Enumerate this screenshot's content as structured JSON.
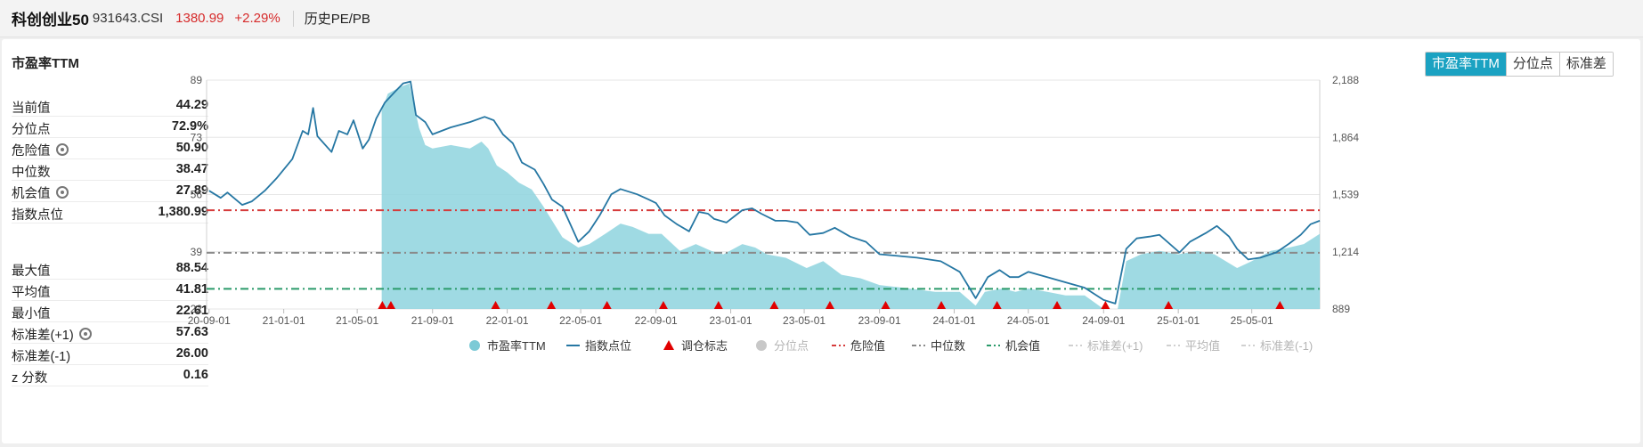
{
  "header": {
    "index_name": "科创创业50",
    "index_code": "931643.CSI",
    "price": "1380.99",
    "change": "+2.29%",
    "history_link": "历史PE/PB"
  },
  "panel": {
    "title": "市盈率TTM",
    "buttons": [
      "市盈率TTM",
      "分位点",
      "标准差"
    ],
    "active_button": 0
  },
  "stats_top": [
    {
      "label": "当前值",
      "value": "44.29",
      "gear": false
    },
    {
      "label": "分位点",
      "value": "72.9%",
      "gear": false
    },
    {
      "label": "危险值",
      "value": "50.90",
      "gear": true
    },
    {
      "label": "中位数",
      "value": "38.47",
      "gear": false
    },
    {
      "label": "机会值",
      "value": "27.89",
      "gear": true
    },
    {
      "label": "指数点位",
      "value": "1,380.99",
      "gear": false
    }
  ],
  "stats_bottom": [
    {
      "label": "最大值",
      "value": "88.54",
      "gear": false
    },
    {
      "label": "平均值",
      "value": "41.81",
      "gear": false
    },
    {
      "label": "最小值",
      "value": "22.61",
      "gear": false
    },
    {
      "label": "标准差(+1)",
      "value": "57.63",
      "gear": true
    },
    {
      "label": "标准差(-1)",
      "value": "26.00",
      "gear": false
    },
    {
      "label": "z 分数",
      "value": "0.16",
      "gear": false
    }
  ],
  "chart_data": {
    "type": "area",
    "x_ticks": [
      "20-09-01",
      "21-01-01",
      "21-05-01",
      "21-09-01",
      "22-01-01",
      "22-05-01",
      "22-09-01",
      "23-01-01",
      "23-05-01",
      "23-09-01",
      "24-01-01",
      "24-05-01",
      "24-09-01",
      "25-01-01",
      "25-05-01"
    ],
    "ylim_left": [
      22,
      89
    ],
    "yticks_left": [
      "89",
      "73",
      "56",
      "39",
      "22"
    ],
    "ylim_right": [
      889,
      2188
    ],
    "yticks_right": [
      "2,188",
      "1,864",
      "1,539",
      "1,214",
      "889"
    ],
    "time_range": [
      "2020-08-28",
      "2025-08-20"
    ],
    "series": [
      {
        "name": "市盈率TTM",
        "kind": "area",
        "axis": "left",
        "color": "#8ed3de",
        "points": [
          [
            "2021-06-10",
            80
          ],
          [
            "2021-06-20",
            85
          ],
          [
            "2021-07-10",
            87
          ],
          [
            "2021-07-25",
            88
          ],
          [
            "2021-08-10",
            75
          ],
          [
            "2021-08-20",
            70
          ],
          [
            "2021-09-01",
            69
          ],
          [
            "2021-10-01",
            70
          ],
          [
            "2021-11-01",
            69
          ],
          [
            "2021-11-20",
            71
          ],
          [
            "2021-12-01",
            69
          ],
          [
            "2021-12-15",
            64
          ],
          [
            "2022-01-01",
            62
          ],
          [
            "2022-01-20",
            59
          ],
          [
            "2022-02-10",
            57
          ],
          [
            "2022-03-01",
            52
          ],
          [
            "2022-04-01",
            43
          ],
          [
            "2022-04-27",
            40
          ],
          [
            "2022-05-15",
            41
          ],
          [
            "2022-06-10",
            44
          ],
          [
            "2022-07-05",
            47
          ],
          [
            "2022-07-25",
            46
          ],
          [
            "2022-08-20",
            44
          ],
          [
            "2022-09-10",
            44
          ],
          [
            "2022-10-10",
            39
          ],
          [
            "2022-11-05",
            41
          ],
          [
            "2022-11-30",
            39
          ],
          [
            "2022-12-20",
            38
          ],
          [
            "2023-01-20",
            41
          ],
          [
            "2023-02-10",
            40
          ],
          [
            "2023-03-01",
            38
          ],
          [
            "2023-04-01",
            37
          ],
          [
            "2023-05-05",
            34
          ],
          [
            "2023-06-01",
            36
          ],
          [
            "2023-07-01",
            32
          ],
          [
            "2023-08-01",
            31
          ],
          [
            "2023-09-01",
            29
          ],
          [
            "2023-10-20",
            28
          ],
          [
            "2023-12-01",
            27
          ],
          [
            "2024-01-10",
            27
          ],
          [
            "2024-02-05",
            23
          ],
          [
            "2024-02-20",
            27
          ],
          [
            "2024-03-20",
            28
          ],
          [
            "2024-04-10",
            27
          ],
          [
            "2024-05-01",
            28
          ],
          [
            "2024-06-01",
            27
          ],
          [
            "2024-07-01",
            26
          ],
          [
            "2024-08-01",
            26
          ],
          [
            "2024-09-01",
            22
          ],
          [
            "2024-09-24",
            22
          ],
          [
            "2024-10-08",
            36
          ],
          [
            "2024-11-01",
            38
          ],
          [
            "2024-12-01",
            39
          ],
          [
            "2025-01-01",
            38
          ],
          [
            "2025-02-01",
            39
          ],
          [
            "2025-03-01",
            38
          ],
          [
            "2025-04-07",
            34
          ],
          [
            "2025-05-01",
            36
          ],
          [
            "2025-06-01",
            39
          ],
          [
            "2025-07-01",
            40
          ],
          [
            "2025-07-25",
            41
          ],
          [
            "2025-08-20",
            44
          ]
        ]
      },
      {
        "name": "指数点位",
        "kind": "line",
        "axis": "right",
        "color": "#2677a3",
        "points": [
          [
            "2020-09-01",
            1560
          ],
          [
            "2020-09-20",
            1520
          ],
          [
            "2020-10-01",
            1550
          ],
          [
            "2020-10-25",
            1480
          ],
          [
            "2020-11-10",
            1500
          ],
          [
            "2020-12-01",
            1560
          ],
          [
            "2020-12-20",
            1630
          ],
          [
            "2021-01-15",
            1740
          ],
          [
            "2021-02-01",
            1900
          ],
          [
            "2021-02-10",
            1880
          ],
          [
            "2021-02-18",
            2030
          ],
          [
            "2021-02-25",
            1870
          ],
          [
            "2021-03-20",
            1780
          ],
          [
            "2021-04-01",
            1900
          ],
          [
            "2021-04-15",
            1880
          ],
          [
            "2021-04-25",
            1960
          ],
          [
            "2021-05-10",
            1800
          ],
          [
            "2021-05-20",
            1850
          ],
          [
            "2021-06-01",
            1970
          ],
          [
            "2021-06-15",
            2060
          ],
          [
            "2021-07-01",
            2120
          ],
          [
            "2021-07-15",
            2170
          ],
          [
            "2021-07-27",
            2180
          ],
          [
            "2021-08-05",
            1990
          ],
          [
            "2021-08-20",
            1950
          ],
          [
            "2021-09-01",
            1880
          ],
          [
            "2021-10-01",
            1920
          ],
          [
            "2021-11-01",
            1950
          ],
          [
            "2021-11-25",
            1980
          ],
          [
            "2021-12-10",
            1960
          ],
          [
            "2021-12-25",
            1880
          ],
          [
            "2022-01-10",
            1830
          ],
          [
            "2022-01-25",
            1720
          ],
          [
            "2022-02-15",
            1680
          ],
          [
            "2022-03-01",
            1600
          ],
          [
            "2022-03-15",
            1510
          ],
          [
            "2022-04-01",
            1470
          ],
          [
            "2022-04-27",
            1270
          ],
          [
            "2022-05-15",
            1330
          ],
          [
            "2022-06-01",
            1420
          ],
          [
            "2022-06-20",
            1540
          ],
          [
            "2022-07-05",
            1570
          ],
          [
            "2022-08-01",
            1540
          ],
          [
            "2022-08-20",
            1510
          ],
          [
            "2022-09-01",
            1490
          ],
          [
            "2022-09-15",
            1420
          ],
          [
            "2022-10-05",
            1370
          ],
          [
            "2022-10-25",
            1330
          ],
          [
            "2022-11-10",
            1440
          ],
          [
            "2022-11-25",
            1430
          ],
          [
            "2022-12-05",
            1400
          ],
          [
            "2022-12-25",
            1380
          ],
          [
            "2023-01-20",
            1450
          ],
          [
            "2023-02-05",
            1460
          ],
          [
            "2023-02-20",
            1430
          ],
          [
            "2023-03-15",
            1390
          ],
          [
            "2023-04-01",
            1390
          ],
          [
            "2023-04-20",
            1380
          ],
          [
            "2023-05-10",
            1310
          ],
          [
            "2023-06-01",
            1320
          ],
          [
            "2023-06-20",
            1350
          ],
          [
            "2023-07-15",
            1300
          ],
          [
            "2023-08-10",
            1270
          ],
          [
            "2023-09-01",
            1200
          ],
          [
            "2023-10-01",
            1190
          ],
          [
            "2023-11-01",
            1180
          ],
          [
            "2023-12-10",
            1160
          ],
          [
            "2024-01-10",
            1100
          ],
          [
            "2024-02-05",
            950
          ],
          [
            "2024-02-25",
            1070
          ],
          [
            "2024-03-15",
            1110
          ],
          [
            "2024-04-01",
            1070
          ],
          [
            "2024-04-15",
            1070
          ],
          [
            "2024-05-01",
            1100
          ],
          [
            "2024-06-01",
            1070
          ],
          [
            "2024-07-01",
            1040
          ],
          [
            "2024-08-01",
            1010
          ],
          [
            "2024-09-01",
            940
          ],
          [
            "2024-09-20",
            920
          ],
          [
            "2024-10-08",
            1230
          ],
          [
            "2024-10-25",
            1290
          ],
          [
            "2024-11-15",
            1300
          ],
          [
            "2024-12-01",
            1310
          ],
          [
            "2025-01-03",
            1210
          ],
          [
            "2025-01-20",
            1270
          ],
          [
            "2025-02-15",
            1320
          ],
          [
            "2025-03-05",
            1360
          ],
          [
            "2025-03-25",
            1300
          ],
          [
            "2025-04-07",
            1230
          ],
          [
            "2025-04-25",
            1170
          ],
          [
            "2025-05-15",
            1180
          ],
          [
            "2025-06-10",
            1210
          ],
          [
            "2025-07-01",
            1260
          ],
          [
            "2025-07-20",
            1310
          ],
          [
            "2025-08-05",
            1370
          ],
          [
            "2025-08-20",
            1390
          ]
        ]
      }
    ],
    "rebalance_markers": [
      "2021-06-11",
      "2021-06-25",
      "2021-12-13",
      "2022-03-14",
      "2022-06-13",
      "2022-09-13",
      "2022-12-12",
      "2023-03-13",
      "2023-06-12",
      "2023-09-11",
      "2023-12-11",
      "2024-03-11",
      "2024-06-17",
      "2024-09-04",
      "2024-12-16",
      "2025-06-16"
    ],
    "reference_lines": [
      {
        "name": "危险值",
        "value": 50.9,
        "color": "#d63b3b"
      },
      {
        "name": "中位数",
        "value": 38.47,
        "color": "#8a8a8a"
      },
      {
        "name": "机会值",
        "value": 27.89,
        "color": "#2a9a6a"
      }
    ],
    "legend": {
      "position": "bottom-center",
      "items": [
        {
          "label": "市盈率TTM",
          "type": "circle",
          "color": "#7ccad6",
          "active": true
        },
        {
          "label": "指数点位",
          "type": "line",
          "color": "#2677a3",
          "active": true
        },
        {
          "label": "调仓标志",
          "type": "triangle",
          "color": "#e10000",
          "active": true
        },
        {
          "label": "分位点",
          "type": "circle",
          "color": "#c8c8c8",
          "active": false
        },
        {
          "label": "危险值",
          "type": "dash",
          "color": "#d63b3b",
          "active": true
        },
        {
          "label": "中位数",
          "type": "dash",
          "color": "#8a8a8a",
          "active": true
        },
        {
          "label": "机会值",
          "type": "dash",
          "color": "#2a9a6a",
          "active": true
        },
        {
          "label": "标准差(+1)",
          "type": "dash",
          "color": "#d0d0d0",
          "active": false
        },
        {
          "label": "平均值",
          "type": "dash",
          "color": "#d0d0d0",
          "active": false
        },
        {
          "label": "标准差(-1)",
          "type": "dash",
          "color": "#d0d0d0",
          "active": false
        }
      ]
    }
  }
}
